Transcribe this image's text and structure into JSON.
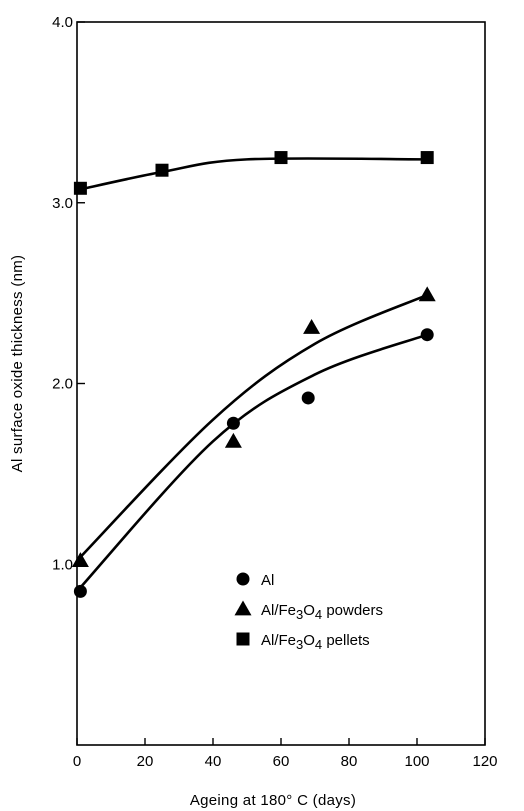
{
  "chart_data": {
    "type": "scatter",
    "title": "",
    "xlabel": "Ageing at 180° C (days)",
    "ylabel": "Al surface oxide thickness (nm)",
    "xlim": [
      0,
      120
    ],
    "ylim": [
      0,
      4.0
    ],
    "x_ticks": [
      0,
      20,
      40,
      60,
      80,
      100,
      120
    ],
    "y_ticks": [
      1.0,
      2.0,
      3.0,
      4.0
    ],
    "x_tick_labels": [
      "0",
      "20",
      "40",
      "60",
      "80",
      "100",
      "120"
    ],
    "y_tick_labels": [
      "1.0",
      "2.0",
      "3.0",
      "4.0"
    ],
    "grid": false,
    "legend_position": "inside-lower-right",
    "series": [
      {
        "name": "Al",
        "marker": "circle",
        "points": [
          {
            "x": 1,
            "y": 0.85
          },
          {
            "x": 46,
            "y": 1.78
          },
          {
            "x": 68,
            "y": 1.92
          },
          {
            "x": 103,
            "y": 2.27
          }
        ],
        "fit": [
          [
            0,
            0.85
          ],
          [
            40,
            1.68
          ],
          [
            70,
            2.05
          ],
          [
            103,
            2.27
          ]
        ]
      },
      {
        "name": "Al/Fe3O4 powders",
        "legend_parts": [
          "Al/Fe",
          "3",
          "O",
          "4",
          " powders"
        ],
        "marker": "triangle",
        "points": [
          {
            "x": 1,
            "y": 1.02
          },
          {
            "x": 46,
            "y": 1.68
          },
          {
            "x": 69,
            "y": 2.31
          },
          {
            "x": 103,
            "y": 2.49
          }
        ],
        "fit": [
          [
            0,
            1.02
          ],
          [
            40,
            1.8
          ],
          [
            70,
            2.22
          ],
          [
            103,
            2.49
          ]
        ]
      },
      {
        "name": "Al/Fe3O4 pellets",
        "legend_parts": [
          "Al/Fe",
          "3",
          "O",
          "4",
          " pellets"
        ],
        "marker": "square",
        "points": [
          {
            "x": 1,
            "y": 3.08
          },
          {
            "x": 25,
            "y": 3.18
          },
          {
            "x": 60,
            "y": 3.25
          },
          {
            "x": 103,
            "y": 3.25
          }
        ],
        "fit": [
          [
            0,
            3.07
          ],
          [
            25,
            3.17
          ],
          [
            50,
            3.24
          ],
          [
            103,
            3.24
          ]
        ]
      }
    ]
  }
}
